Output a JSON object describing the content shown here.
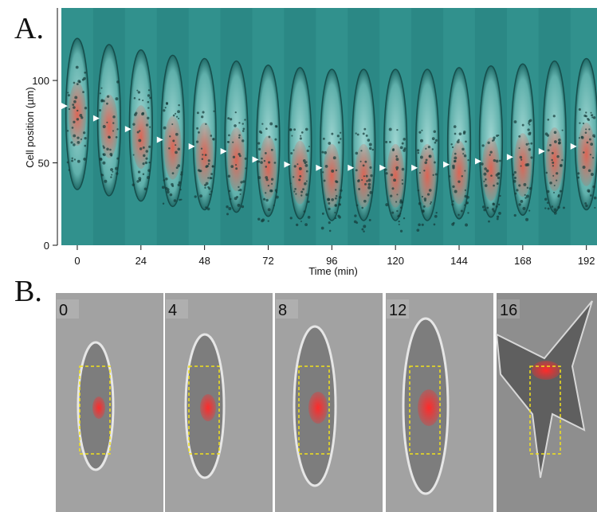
{
  "panel_a": {
    "label": "A.",
    "y_label": "Cell position (µm)",
    "x_label": "Time (min)",
    "ylim": [
      0,
      144
    ],
    "yticks": [
      0,
      50,
      100
    ],
    "xlim": [
      -6,
      196
    ],
    "xticks": [
      0,
      24,
      48,
      72,
      96,
      120,
      144,
      168,
      192
    ],
    "markers": {
      "time": [
        0,
        12,
        24,
        36,
        48,
        60,
        72,
        84,
        96,
        108,
        120,
        132,
        144,
        156,
        168,
        180,
        192
      ],
      "position": [
        84.5,
        77,
        70.5,
        64,
        60,
        57,
        52,
        49,
        47,
        47,
        47,
        47,
        49,
        51,
        53.5,
        57,
        60
      ]
    }
  },
  "panel_b": {
    "label": "B.",
    "frames": [
      "0",
      "4",
      "8",
      "12",
      "16"
    ]
  }
}
